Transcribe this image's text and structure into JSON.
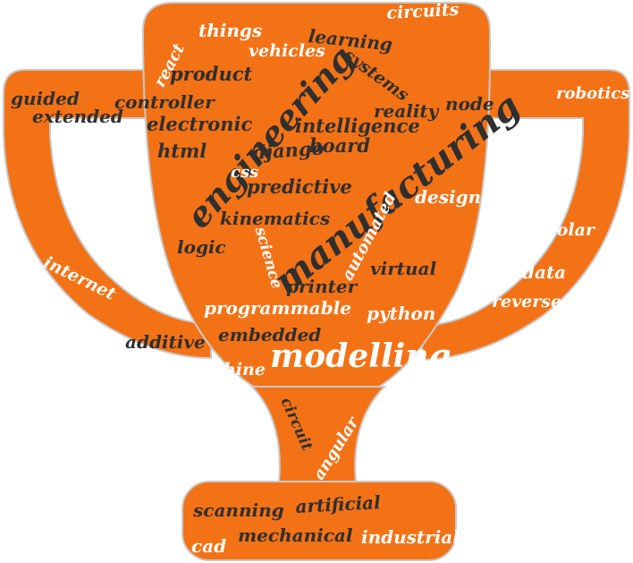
{
  "shape": {
    "name": "trophy",
    "fill": "#f47216",
    "edge": "#c9c9c9"
  },
  "colors": {
    "dark_text": "#2f2f2f",
    "light_text": "#ffffff"
  },
  "words": {
    "circuits": "circuits",
    "things": "things",
    "learning": "learning",
    "vehicles": "vehicles",
    "react": "react",
    "systems": "systems",
    "product": "product",
    "engineering": "engineering",
    "robotics": "robotics",
    "guided": "guided",
    "controller": "controller",
    "reality": "reality",
    "node": "node",
    "extended": "extended",
    "electronic": "electronic",
    "intelligence": "intelligence",
    "html": "html",
    "django": "django",
    "board": "board",
    "manufacturing": "manufacturing",
    "css": "css",
    "predictive": "predictive",
    "design": "design",
    "kinematics": "kinematics",
    "solar": "solar",
    "logic": "logic",
    "science": "science",
    "automated": "automated",
    "internet": "internet",
    "virtual": "virtual",
    "data": "data",
    "printer": "printer",
    "reverse": "reverse",
    "programmable": "programmable",
    "python": "python",
    "embedded": "embedded",
    "additive": "additive",
    "modelling": "modelling",
    "machine": "machine",
    "circuit": "circuit",
    "angular": "angular",
    "scanning": "scanning",
    "artificial": "artificial",
    "mechanical": "mechanical",
    "cad": "cad",
    "industrial": "industrial"
  }
}
